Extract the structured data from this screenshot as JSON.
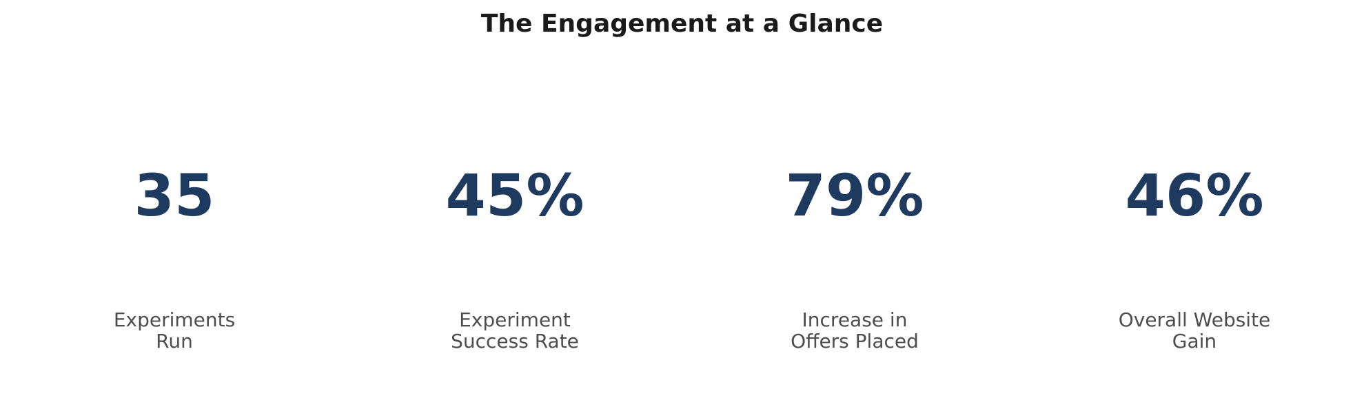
{
  "chart_data": {
    "type": "table",
    "title": "The Engagement at a Glance",
    "value_color": "#1f3a5f",
    "label_color": "#4d4d4d",
    "kpis": [
      {
        "value": "35",
        "label_lines": [
          "Experiments",
          "Run"
        ]
      },
      {
        "value": "45%",
        "label_lines": [
          "Experiment",
          "Success Rate"
        ]
      },
      {
        "value": "79%",
        "label_lines": [
          "Increase in",
          "Offers Placed"
        ]
      },
      {
        "value": "46%",
        "label_lines": [
          "Overall Website",
          "Gain"
        ]
      }
    ]
  }
}
